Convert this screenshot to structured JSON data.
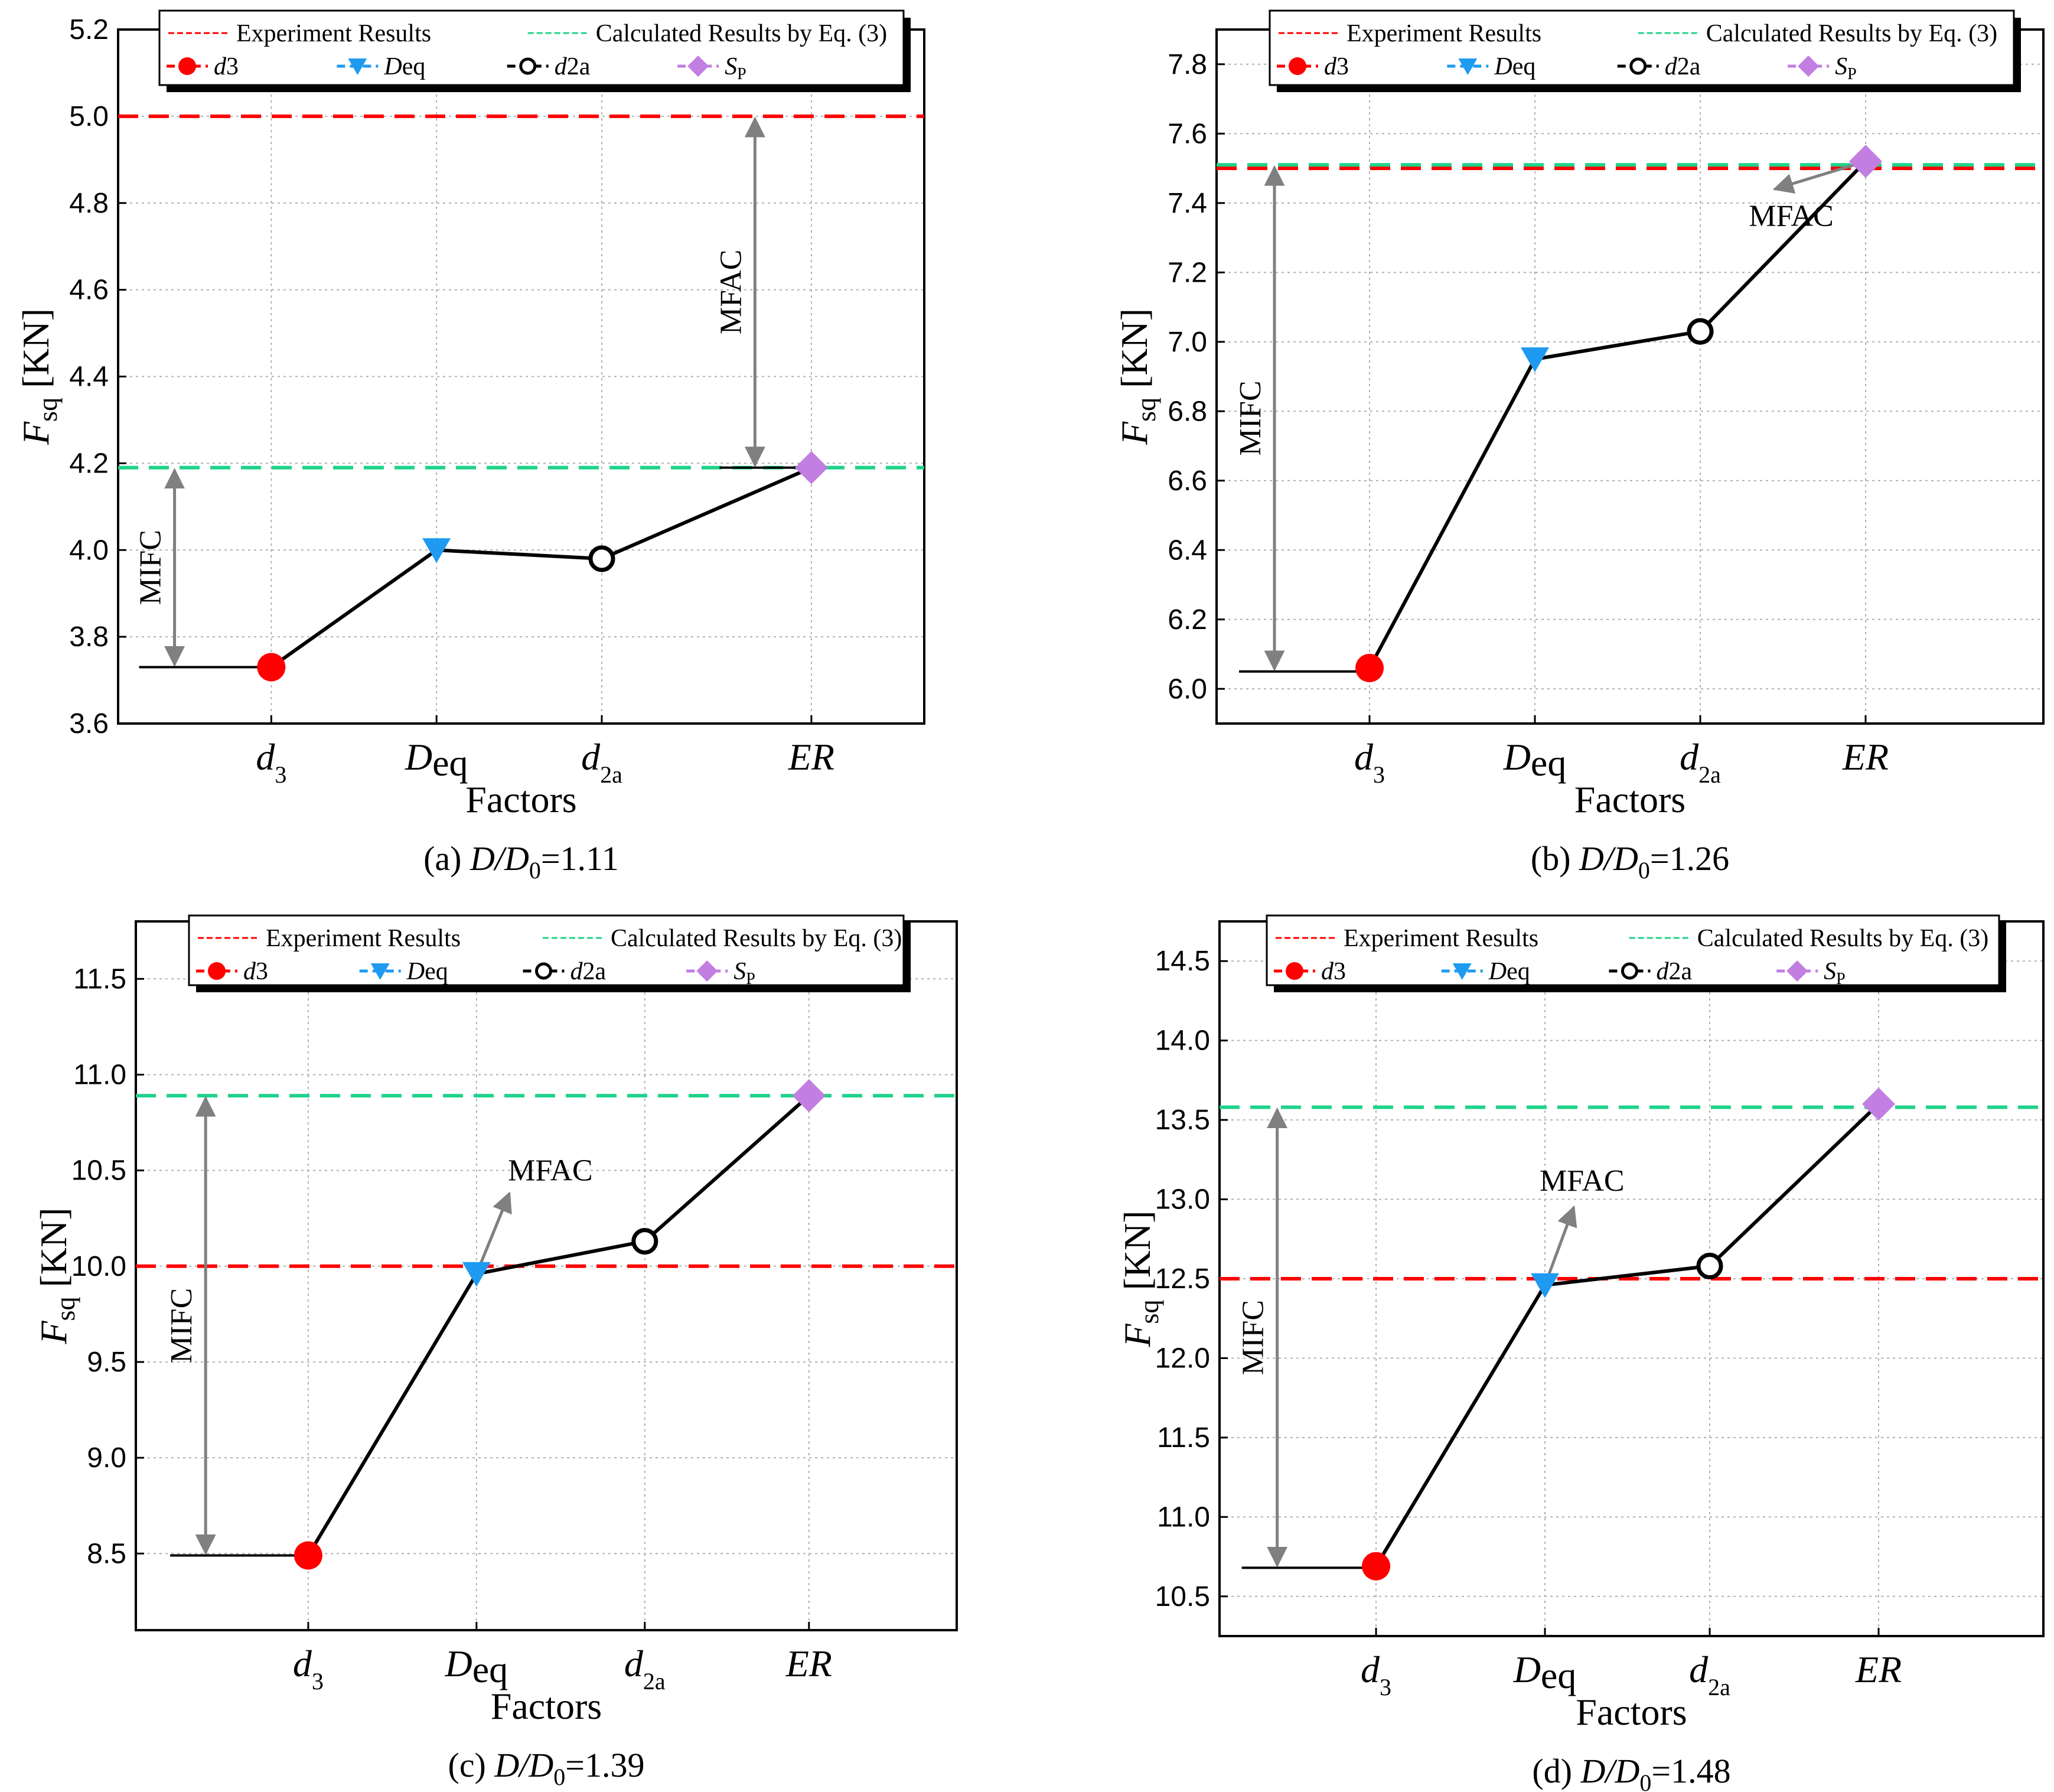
{
  "legend": {
    "experiment_label": "Experiment Results",
    "calculated_label": "Calculated  Results by Eq. (3)",
    "marker_labels": {
      "d3": {
        "base": "d",
        "sub": "3"
      },
      "Deq": {
        "base": "D",
        "sub": "eq"
      },
      "d2a": {
        "base": "d",
        "sub": "2a"
      },
      "Sp": {
        "base": "S",
        "sub": "P"
      }
    }
  },
  "axis_titles": {
    "y_base": "F",
    "y_sub": "sq",
    "y_unit": " [KN]",
    "x": "Factors"
  },
  "categories": [
    {
      "id": "d3",
      "base": "d",
      "sub": "3"
    },
    {
      "id": "Deq",
      "base": "D",
      "sub": "eq"
    },
    {
      "id": "d2a",
      "base": "d",
      "sub": "2a"
    },
    {
      "id": "ER",
      "base": "ER",
      "sub": ""
    }
  ],
  "colors": {
    "experiment": "#ff0000",
    "calculated": "#1fd38a",
    "d3": "#ff0000",
    "Deq": "#1e9bf0",
    "d2a": "#000000",
    "Sp": "#c27ee0",
    "arrow": "#808080",
    "line": "#000000"
  },
  "chart_data": [
    {
      "type": "line",
      "panel": "(a)",
      "caption_prefix": "(a)",
      "caption_ratio": "D/D0=1.11",
      "caption_value": "=1.11",
      "categories": [
        "d3",
        "Deq",
        "d2a",
        "ER"
      ],
      "values": [
        3.73,
        4.0,
        3.98,
        4.19
      ],
      "experiment_result": 5.0,
      "calculated_result": 4.19,
      "ylim": [
        3.6,
        5.2
      ],
      "yticks": [
        "3.6",
        "3.8",
        "4.0",
        "4.2",
        "4.4",
        "4.6",
        "4.8",
        "5.0",
        "5.2"
      ],
      "xlabel": "Factors",
      "ylabel": "Fsq [KN]",
      "annotations": [
        {
          "text": "MIFC",
          "type": "double-arrow",
          "from": 3.73,
          "to": 4.19
        },
        {
          "text": "MFAC",
          "type": "double-arrow",
          "from": 4.19,
          "to": 5.0
        }
      ]
    },
    {
      "type": "line",
      "panel": "(b)",
      "caption_prefix": "(b)",
      "caption_ratio": "D/D0=1.26",
      "caption_value": "=1.26",
      "categories": [
        "d3",
        "Deq",
        "d2a",
        "ER"
      ],
      "values": [
        6.06,
        6.95,
        7.03,
        7.52
      ],
      "experiment_result": 7.5,
      "calculated_result": 7.51,
      "ylim": [
        5.9,
        7.9
      ],
      "yticks": [
        "6.0",
        "6.2",
        "6.4",
        "6.6",
        "6.8",
        "7.0",
        "7.2",
        "7.4",
        "7.6",
        "7.8"
      ],
      "xlabel": "Factors",
      "ylabel": "Fsq [KN]",
      "annotations": [
        {
          "text": "MIFC",
          "type": "double-arrow",
          "from": 6.05,
          "to": 7.51
        },
        {
          "text": "MFAC",
          "type": "arrow",
          "from": 7.52,
          "to": 7.44
        }
      ]
    },
    {
      "type": "line",
      "panel": "(c)",
      "caption_prefix": "(c)",
      "caption_ratio": "D/D0=1.39",
      "caption_value": "=1.39",
      "categories": [
        "d3",
        "Deq",
        "d2a",
        "ER"
      ],
      "values": [
        8.49,
        9.96,
        10.13,
        10.89
      ],
      "experiment_result": 10.0,
      "calculated_result": 10.89,
      "ylim": [
        8.1,
        11.8
      ],
      "yticks": [
        "8.5",
        "9.0",
        "9.5",
        "10.0",
        "10.5",
        "11.0",
        "11.5"
      ],
      "xlabel": "Factors",
      "ylabel": "Fsq [KN]",
      "annotations": [
        {
          "text": "MIFC",
          "type": "double-arrow",
          "from": 8.49,
          "to": 10.89
        },
        {
          "text": "MFAC",
          "type": "arrow",
          "from": 9.96,
          "to": 10.38
        }
      ]
    },
    {
      "type": "line",
      "panel": "(d)",
      "caption_prefix": "(d)",
      "caption_ratio": "D/D0=1.48",
      "caption_value": "=1.48",
      "categories": [
        "d3",
        "Deq",
        "d2a",
        "ER"
      ],
      "values": [
        10.69,
        12.46,
        12.58,
        13.6
      ],
      "experiment_result": 12.5,
      "calculated_result": 13.58,
      "ylim": [
        10.25,
        14.75
      ],
      "yticks": [
        "10.5",
        "11.0",
        "11.5",
        "12.0",
        "12.5",
        "13.0",
        "13.5",
        "14.0",
        "14.5"
      ],
      "xlabel": "Factors",
      "ylabel": "Fsq [KN]",
      "annotations": [
        {
          "text": "MIFC",
          "type": "double-arrow",
          "from": 10.68,
          "to": 13.58
        },
        {
          "text": "MFAC",
          "type": "arrow",
          "from": 12.46,
          "to": 12.95
        }
      ]
    }
  ]
}
